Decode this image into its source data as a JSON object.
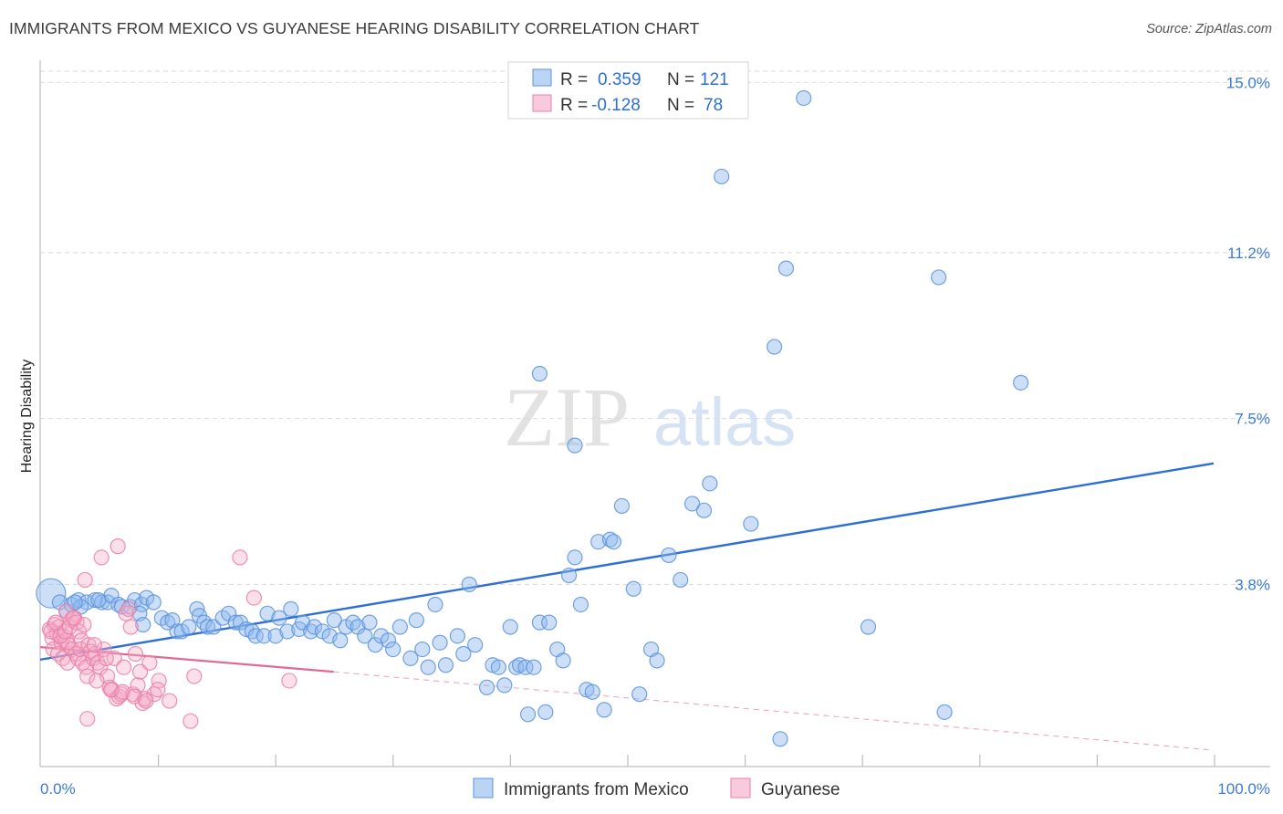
{
  "title": "IMMIGRANTS FROM MEXICO VS GUYANESE HEARING DISABILITY CORRELATION CHART",
  "source": "Source: ZipAtlas.com",
  "watermark": {
    "zip": "ZIP",
    "atlas": "atlas"
  },
  "colors": {
    "blue": "#8fb8ee",
    "blue_edge": "#5b93dd",
    "blue_line": "#2d6fd6",
    "pink": "#f5aac5",
    "pink_edge": "#ea7fa5",
    "pink_line": "#e06a97",
    "grid": "#d9d9d9",
    "axis": "#bdbdbd",
    "tick_text": "#3d7bd6"
  },
  "legend": {
    "rows": [
      {
        "r_label": "R =",
        "r_value": "0.359",
        "n_label": "N =",
        "n_value": "121"
      },
      {
        "r_label": "R =",
        "r_value": "-0.128",
        "n_label": "N =",
        "n_value": "78"
      }
    ]
  },
  "chart_data": {
    "type": "scatter",
    "title": "IMMIGRANTS FROM MEXICO VS GUYANESE HEARING DISABILITY CORRELATION CHART",
    "xlabel": "",
    "ylabel": "Hearing Disability",
    "xlim": [
      0,
      100
    ],
    "ylim": [
      0,
      15.5
    ],
    "x_tick_labels": [
      "0.0%",
      "100.0%"
    ],
    "y_ticks": [
      3.8,
      7.5,
      11.2,
      15.0
    ],
    "y_tick_labels": [
      "3.8%",
      "7.5%",
      "11.2%",
      "15.0%"
    ],
    "x_minor_ticks": [
      10,
      20,
      30,
      40,
      50,
      60,
      70,
      80,
      90,
      100
    ],
    "grid": true,
    "series": [
      {
        "name": "Immigrants from Mexico",
        "color": "blue",
        "r": 0.359,
        "n": 121,
        "trend": {
          "x": [
            0,
            100
          ],
          "y": [
            2.12,
            6.5
          ],
          "dashed_extension": false
        },
        "points": [
          [
            0.3,
            3.6
          ],
          [
            1.2,
            3.4
          ],
          [
            1.8,
            3.2
          ],
          [
            2.2,
            3.35
          ],
          [
            2.8,
            3.45
          ],
          [
            3.5,
            3.4
          ],
          [
            4.2,
            3.45
          ],
          [
            4.8,
            3.4
          ],
          [
            5.3,
            3.4
          ],
          [
            5.6,
            3.55
          ],
          [
            6.2,
            3.35
          ],
          [
            6.5,
            3.3
          ],
          [
            7.2,
            3.3
          ],
          [
            7.6,
            3.45
          ],
          [
            8.2,
            3.35
          ],
          [
            8.6,
            3.5
          ],
          [
            9.2,
            3.4
          ],
          [
            3.0,
            3.3
          ],
          [
            4.5,
            3.45
          ],
          [
            2.5,
            3.4
          ],
          [
            8.0,
            3.15
          ],
          [
            8.3,
            2.9
          ],
          [
            9.9,
            3.05
          ],
          [
            10.4,
            2.95
          ],
          [
            10.8,
            3.0
          ],
          [
            11.2,
            2.75
          ],
          [
            11.6,
            2.75
          ],
          [
            12.2,
            2.85
          ],
          [
            12.9,
            3.25
          ],
          [
            13.1,
            3.1
          ],
          [
            13.5,
            2.95
          ],
          [
            13.8,
            2.85
          ],
          [
            14.3,
            2.85
          ],
          [
            15.1,
            3.05
          ],
          [
            15.6,
            3.15
          ],
          [
            16.2,
            2.95
          ],
          [
            16.6,
            2.95
          ],
          [
            17.1,
            2.8
          ],
          [
            17.6,
            2.75
          ],
          [
            17.9,
            2.65
          ],
          [
            18.6,
            2.65
          ],
          [
            18.9,
            3.15
          ],
          [
            19.6,
            2.65
          ],
          [
            19.9,
            3.05
          ],
          [
            20.6,
            2.75
          ],
          [
            20.9,
            3.25
          ],
          [
            21.6,
            2.8
          ],
          [
            21.9,
            2.95
          ],
          [
            22.6,
            2.75
          ],
          [
            22.9,
            2.85
          ],
          [
            23.6,
            2.75
          ],
          [
            24.2,
            2.65
          ],
          [
            24.6,
            3.0
          ],
          [
            25.1,
            2.55
          ],
          [
            25.6,
            2.85
          ],
          [
            26.2,
            2.95
          ],
          [
            26.6,
            2.85
          ],
          [
            27.2,
            2.65
          ],
          [
            27.6,
            2.95
          ],
          [
            28.1,
            2.45
          ],
          [
            28.6,
            2.65
          ],
          [
            29.2,
            2.55
          ],
          [
            29.6,
            2.35
          ],
          [
            30.2,
            2.85
          ],
          [
            31.1,
            2.15
          ],
          [
            31.6,
            3.0
          ],
          [
            32.1,
            2.35
          ],
          [
            32.6,
            1.95
          ],
          [
            33.2,
            3.35
          ],
          [
            33.6,
            2.5
          ],
          [
            34.1,
            2.0
          ],
          [
            35.1,
            2.65
          ],
          [
            35.6,
            2.25
          ],
          [
            36.1,
            3.8
          ],
          [
            36.6,
            2.45
          ],
          [
            37.6,
            1.5
          ],
          [
            38.1,
            2.0
          ],
          [
            38.6,
            1.95
          ],
          [
            39.1,
            1.55
          ],
          [
            39.6,
            2.85
          ],
          [
            40.1,
            1.95
          ],
          [
            40.4,
            2.0
          ],
          [
            40.9,
            1.95
          ],
          [
            41.1,
            0.9
          ],
          [
            41.6,
            1.95
          ],
          [
            42.1,
            2.95
          ],
          [
            42.6,
            0.95
          ],
          [
            42.9,
            2.95
          ],
          [
            43.6,
            2.35
          ],
          [
            44.1,
            2.1
          ],
          [
            44.6,
            4.0
          ],
          [
            45.1,
            4.4
          ],
          [
            45.6,
            3.35
          ],
          [
            46.1,
            1.45
          ],
          [
            46.6,
            1.4
          ],
          [
            47.1,
            4.75
          ],
          [
            47.6,
            1.0
          ],
          [
            48.1,
            4.8
          ],
          [
            48.4,
            4.75
          ],
          [
            49.1,
            5.55
          ],
          [
            50.1,
            3.7
          ],
          [
            50.6,
            1.35
          ],
          [
            51.6,
            2.35
          ],
          [
            52.1,
            2.1
          ],
          [
            53.1,
            4.45
          ],
          [
            54.1,
            3.9
          ],
          [
            55.1,
            5.6
          ],
          [
            56.1,
            5.45
          ],
          [
            56.6,
            6.05
          ],
          [
            57.6,
            12.9
          ],
          [
            60.1,
            5.15
          ],
          [
            62.1,
            9.1
          ],
          [
            63.1,
            10.85
          ],
          [
            64.6,
            14.65
          ],
          [
            70.1,
            2.85
          ],
          [
            76.1,
            10.65
          ],
          [
            76.6,
            0.95
          ],
          [
            83.1,
            8.3
          ],
          [
            62.6,
            0.35
          ],
          [
            42.1,
            8.5
          ],
          [
            45.1,
            6.9
          ]
        ]
      },
      {
        "name": "Guyanese",
        "color": "pink",
        "r": -0.128,
        "n": 78,
        "trend": {
          "x": [
            0,
            25
          ],
          "y": [
            2.4,
            1.85
          ],
          "dashed_to": [
            100,
            0.1
          ]
        },
        "points": [
          [
            0.2,
            2.8
          ],
          [
            0.4,
            2.6
          ],
          [
            0.6,
            2.9
          ],
          [
            0.8,
            2.7
          ],
          [
            1.0,
            2.85
          ],
          [
            1.2,
            2.5
          ],
          [
            1.4,
            2.65
          ],
          [
            1.6,
            2.55
          ],
          [
            1.8,
            2.45
          ],
          [
            2.0,
            3.0
          ],
          [
            0.3,
            2.75
          ],
          [
            0.7,
            2.95
          ],
          [
            1.1,
            2.65
          ],
          [
            1.5,
            2.75
          ],
          [
            1.9,
            2.85
          ],
          [
            2.3,
            3.05
          ],
          [
            2.5,
            2.95
          ],
          [
            2.7,
            2.75
          ],
          [
            2.9,
            2.55
          ],
          [
            3.1,
            2.9
          ],
          [
            0.5,
            2.35
          ],
          [
            0.9,
            2.25
          ],
          [
            1.3,
            2.15
          ],
          [
            1.7,
            2.05
          ],
          [
            2.1,
            2.35
          ],
          [
            2.4,
            2.25
          ],
          [
            2.6,
            2.15
          ],
          [
            2.8,
            2.35
          ],
          [
            3.0,
            2.05
          ],
          [
            3.3,
            1.95
          ],
          [
            3.5,
            2.45
          ],
          [
            3.7,
            2.3
          ],
          [
            3.9,
            2.15
          ],
          [
            4.1,
            2.25
          ],
          [
            4.3,
            2.05
          ],
          [
            4.5,
            1.95
          ],
          [
            4.8,
            2.35
          ],
          [
            5.1,
            1.75
          ],
          [
            5.3,
            1.5
          ],
          [
            5.5,
            1.45
          ],
          [
            5.7,
            2.15
          ],
          [
            5.9,
            1.25
          ],
          [
            6.1,
            1.3
          ],
          [
            6.3,
            1.35
          ],
          [
            6.5,
            1.95
          ],
          [
            6.7,
            3.15
          ],
          [
            6.9,
            3.25
          ],
          [
            7.1,
            2.85
          ],
          [
            7.3,
            1.35
          ],
          [
            7.5,
            2.25
          ],
          [
            7.7,
            1.55
          ],
          [
            7.9,
            1.85
          ],
          [
            8.1,
            1.15
          ],
          [
            8.3,
            1.25
          ],
          [
            8.7,
            2.05
          ],
          [
            9.1,
            1.35
          ],
          [
            9.5,
            1.65
          ],
          [
            3.2,
            3.9
          ],
          [
            4.6,
            4.4
          ],
          [
            6.0,
            4.65
          ],
          [
            1.6,
            3.2
          ],
          [
            2.2,
            3.05
          ],
          [
            4.0,
            2.45
          ],
          [
            5.0,
            2.15
          ],
          [
            3.4,
            1.75
          ],
          [
            4.2,
            1.65
          ],
          [
            5.4,
            1.45
          ],
          [
            6.4,
            1.4
          ],
          [
            7.4,
            1.3
          ],
          [
            8.4,
            1.2
          ],
          [
            9.4,
            1.45
          ],
          [
            10.4,
            1.2
          ],
          [
            12.2,
            0.75
          ],
          [
            12.5,
            1.75
          ],
          [
            16.4,
            4.4
          ],
          [
            17.6,
            3.5
          ],
          [
            20.6,
            1.65
          ],
          [
            3.4,
            0.8
          ]
        ]
      }
    ]
  },
  "bottom_legend": [
    {
      "label": "Immigrants from Mexico",
      "color": "blue"
    },
    {
      "label": "Guyanese",
      "color": "pink"
    }
  ]
}
